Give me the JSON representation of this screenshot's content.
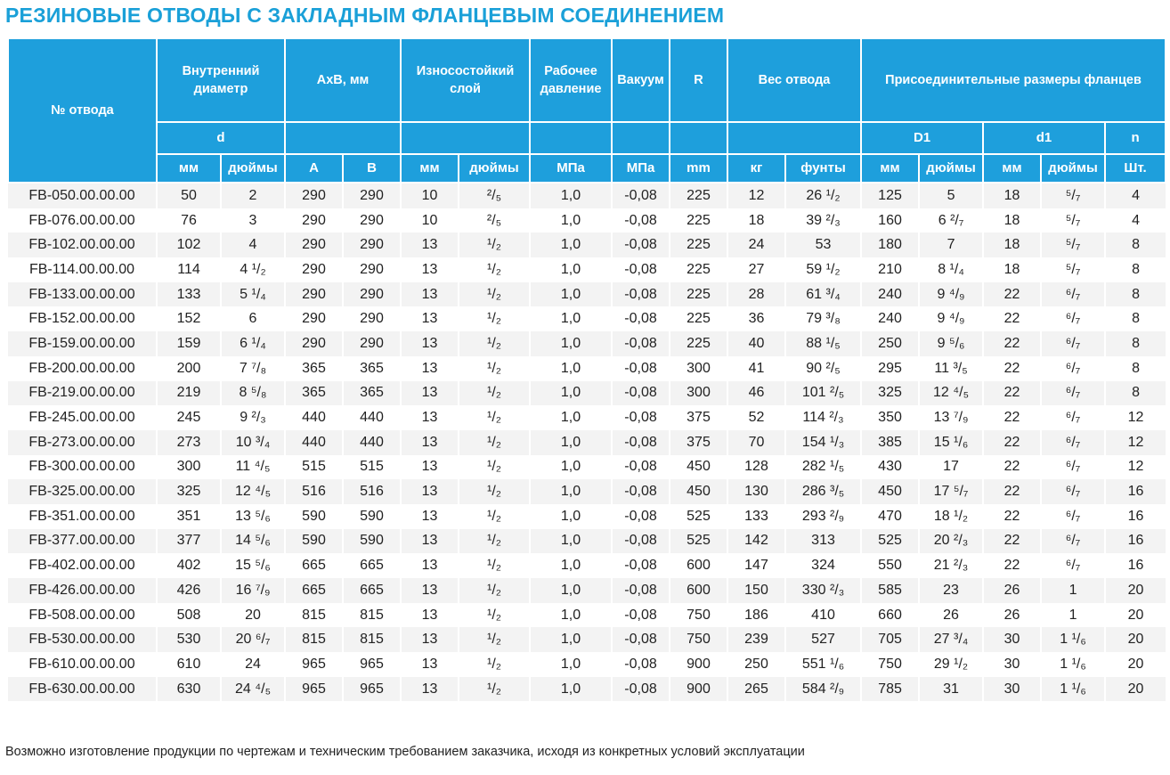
{
  "title": "РЕЗИНОВЫЕ ОТВОДЫ С ЗАКЛАДНЫМ ФЛАНЦЕВЫМ СОЕДИНЕНИЕМ",
  "header": {
    "col_number": "№ отвода",
    "inner_diameter": "Внутренний диаметр",
    "axb": "АхВ, мм",
    "wear_layer": "Износостойкий слой",
    "working_pressure": "Рабочее давление",
    "vacuum": "Вакуум",
    "r": "R",
    "weight": "Вес отвода",
    "flange": "Присоединительные размеры фланцев",
    "sub": {
      "d": "d",
      "D1": "D1",
      "d1": "d1",
      "n": "n"
    },
    "units": {
      "mm": "мм",
      "inches": "дюймы",
      "a": "А",
      "b": "В",
      "mpa_pressure": "МПа",
      "mpa_vacuum": "МПа",
      "r_mm": "mm",
      "kg": "кг",
      "pounds": "фунты",
      "pcs": "Шт."
    }
  },
  "rows": [
    [
      "FB-050.00.00.00",
      "50",
      "2",
      "290",
      "290",
      "10",
      "²/₅",
      "1,0",
      "-0,08",
      "225",
      "12",
      "26 ¹/₂",
      "125",
      "5",
      "18",
      "⁵/₇",
      "4"
    ],
    [
      "FB-076.00.00.00",
      "76",
      "3",
      "290",
      "290",
      "10",
      "²/₅",
      "1,0",
      "-0,08",
      "225",
      "18",
      "39 ²/₃",
      "160",
      "6 ²/₇",
      "18",
      "⁵/₇",
      "4"
    ],
    [
      "FB-102.00.00.00",
      "102",
      "4",
      "290",
      "290",
      "13",
      "¹/₂",
      "1,0",
      "-0,08",
      "225",
      "24",
      "53",
      "180",
      "7",
      "18",
      "⁵/₇",
      "8"
    ],
    [
      "FB-114.00.00.00",
      "114",
      "4 ¹/₂",
      "290",
      "290",
      "13",
      "¹/₂",
      "1,0",
      "-0,08",
      "225",
      "27",
      "59 ¹/₂",
      "210",
      "8 ¹/₄",
      "18",
      "⁵/₇",
      "8"
    ],
    [
      "FB-133.00.00.00",
      "133",
      "5 ¹/₄",
      "290",
      "290",
      "13",
      "¹/₂",
      "1,0",
      "-0,08",
      "225",
      "28",
      "61 ³/₄",
      "240",
      "9 ⁴/₉",
      "22",
      "⁶/₇",
      "8"
    ],
    [
      "FB-152.00.00.00",
      "152",
      "6",
      "290",
      "290",
      "13",
      "¹/₂",
      "1,0",
      "-0,08",
      "225",
      "36",
      "79 ³/₈",
      "240",
      "9 ⁴/₉",
      "22",
      "⁶/₇",
      "8"
    ],
    [
      "FB-159.00.00.00",
      "159",
      "6 ¹/₄",
      "290",
      "290",
      "13",
      "¹/₂",
      "1,0",
      "-0,08",
      "225",
      "40",
      "88 ¹/₅",
      "250",
      "9 ⁵/₆",
      "22",
      "⁶/₇",
      "8"
    ],
    [
      "FB-200.00.00.00",
      "200",
      "7 ⁷/₈",
      "365",
      "365",
      "13",
      "¹/₂",
      "1,0",
      "-0,08",
      "300",
      "41",
      "90 ²/₅",
      "295",
      "11 ³/₅",
      "22",
      "⁶/₇",
      "8"
    ],
    [
      "FB-219.00.00.00",
      "219",
      "8 ⁵/₈",
      "365",
      "365",
      "13",
      "¹/₂",
      "1,0",
      "-0,08",
      "300",
      "46",
      "101 ²/₅",
      "325",
      "12 ⁴/₅",
      "22",
      "⁶/₇",
      "8"
    ],
    [
      "FB-245.00.00.00",
      "245",
      "9 ²/₃",
      "440",
      "440",
      "13",
      "¹/₂",
      "1,0",
      "-0,08",
      "375",
      "52",
      "114 ²/₃",
      "350",
      "13 ⁷/₉",
      "22",
      "⁶/₇",
      "12"
    ],
    [
      "FB-273.00.00.00",
      "273",
      "10 ³/₄",
      "440",
      "440",
      "13",
      "¹/₂",
      "1,0",
      "-0,08",
      "375",
      "70",
      "154 ¹/₃",
      "385",
      "15 ¹/₆",
      "22",
      "⁶/₇",
      "12"
    ],
    [
      "FB-300.00.00.00",
      "300",
      "11 ⁴/₅",
      "515",
      "515",
      "13",
      "¹/₂",
      "1,0",
      "-0,08",
      "450",
      "128",
      "282 ¹/₅",
      "430",
      "17",
      "22",
      "⁶/₇",
      "12"
    ],
    [
      "FB-325.00.00.00",
      "325",
      "12 ⁴/₅",
      "516",
      "516",
      "13",
      "¹/₂",
      "1,0",
      "-0,08",
      "450",
      "130",
      "286 ³/₅",
      "450",
      "17 ⁵/₇",
      "22",
      "⁶/₇",
      "16"
    ],
    [
      "FB-351.00.00.00",
      "351",
      "13 ⁵/₆",
      "590",
      "590",
      "13",
      "¹/₂",
      "1,0",
      "-0,08",
      "525",
      "133",
      "293 ²/₉",
      "470",
      "18 ¹/₂",
      "22",
      "⁶/₇",
      "16"
    ],
    [
      "FB-377.00.00.00",
      "377",
      "14 ⁵/₆",
      "590",
      "590",
      "13",
      "¹/₂",
      "1,0",
      "-0,08",
      "525",
      "142",
      "313",
      "525",
      "20 ²/₃",
      "22",
      "⁶/₇",
      "16"
    ],
    [
      "FB-402.00.00.00",
      "402",
      "15 ⁵/₆",
      "665",
      "665",
      "13",
      "¹/₂",
      "1,0",
      "-0,08",
      "600",
      "147",
      "324",
      "550",
      "21 ²/₃",
      "22",
      "⁶/₇",
      "16"
    ],
    [
      "FB-426.00.00.00",
      "426",
      "16 ⁷/₉",
      "665",
      "665",
      "13",
      "¹/₂",
      "1,0",
      "-0,08",
      "600",
      "150",
      "330 ²/₃",
      "585",
      "23",
      "26",
      "1",
      "20"
    ],
    [
      "FB-508.00.00.00",
      "508",
      "20",
      "815",
      "815",
      "13",
      "¹/₂",
      "1,0",
      "-0,08",
      "750",
      "186",
      "410",
      "660",
      "26",
      "26",
      "1",
      "20"
    ],
    [
      "FB-530.00.00.00",
      "530",
      "20 ⁶/₇",
      "815",
      "815",
      "13",
      "¹/₂",
      "1,0",
      "-0,08",
      "750",
      "239",
      "527",
      "705",
      "27 ³/₄",
      "30",
      "1 ¹/₆",
      "20"
    ],
    [
      "FB-610.00.00.00",
      "610",
      "24",
      "965",
      "965",
      "13",
      "¹/₂",
      "1,0",
      "-0,08",
      "900",
      "250",
      "551 ¹/₆",
      "750",
      "29 ¹/₂",
      "30",
      "1 ¹/₆",
      "20"
    ],
    [
      "FB-630.00.00.00",
      "630",
      "24 ⁴/₅",
      "965",
      "965",
      "13",
      "¹/₂",
      "1,0",
      "-0,08",
      "900",
      "265",
      "584 ²/₉",
      "785",
      "31",
      "30",
      "1 ¹/₆",
      "20"
    ]
  ],
  "footnote": "Возможно изготовление продукции по чертежам и техническим требованием заказчика, исходя из конкретных условий эксплуатации",
  "colors": {
    "title": "#1aa0d8",
    "header_bg": "#1e9fdc",
    "stripe": "#f3f3f3"
  }
}
